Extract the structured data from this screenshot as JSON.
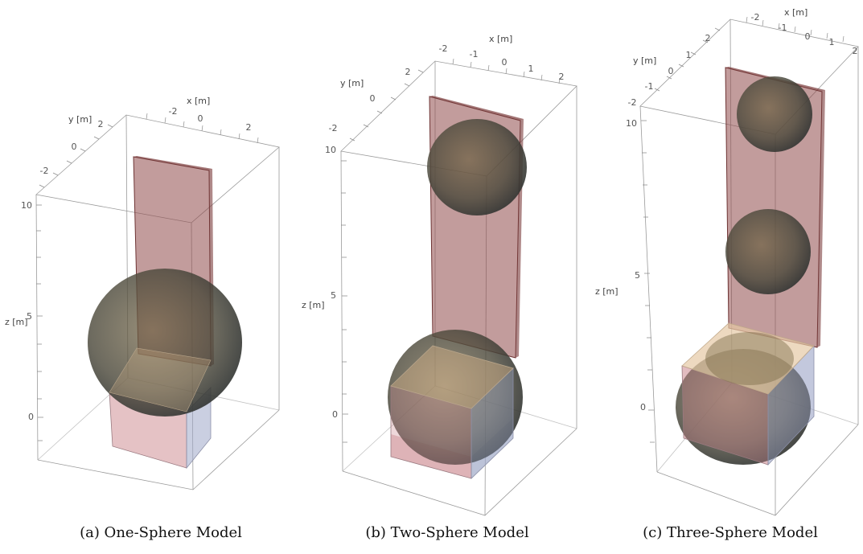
{
  "panels": [
    {
      "caption": "(a) One-Sphere Model",
      "axis_labels": {
        "x": "x [m]",
        "y": "y [m]",
        "z": "z [m]"
      },
      "x_ticks": [
        "-2",
        "0",
        "2"
      ],
      "y_ticks": [
        "2",
        "0",
        "-2"
      ],
      "z_ticks": [
        "10",
        "5",
        "0"
      ],
      "sphere_count": 1
    },
    {
      "caption": "(b) Two-Sphere Model",
      "axis_labels": {
        "x": "x [m]",
        "y": "y [m]",
        "z": "z [m]"
      },
      "x_ticks": [
        "-2",
        "-1",
        "0",
        "1",
        "2"
      ],
      "y_ticks": [
        "2",
        "0",
        "-2"
      ],
      "z_ticks": [
        "10",
        "5",
        "0"
      ],
      "sphere_count": 2
    },
    {
      "caption": "(c) Three-Sphere Model",
      "axis_labels": {
        "x": "x [m]",
        "y": "y [m]",
        "z": "z [m]"
      },
      "x_ticks": [
        "-2",
        "-1",
        "0",
        "1",
        "2"
      ],
      "y_ticks": [
        "2",
        "1",
        "0",
        "-1",
        "-2"
      ],
      "z_ticks": [
        "10",
        "5",
        "0"
      ],
      "sphere_count": 3
    }
  ],
  "colors": {
    "plate": "#8f4a4a",
    "sphere": "#4f4f3f",
    "cube_top": "#d6b489",
    "cube_front": "#cf8f95",
    "cube_right": "#9fa8c8",
    "frame": "#9a9a9a"
  }
}
